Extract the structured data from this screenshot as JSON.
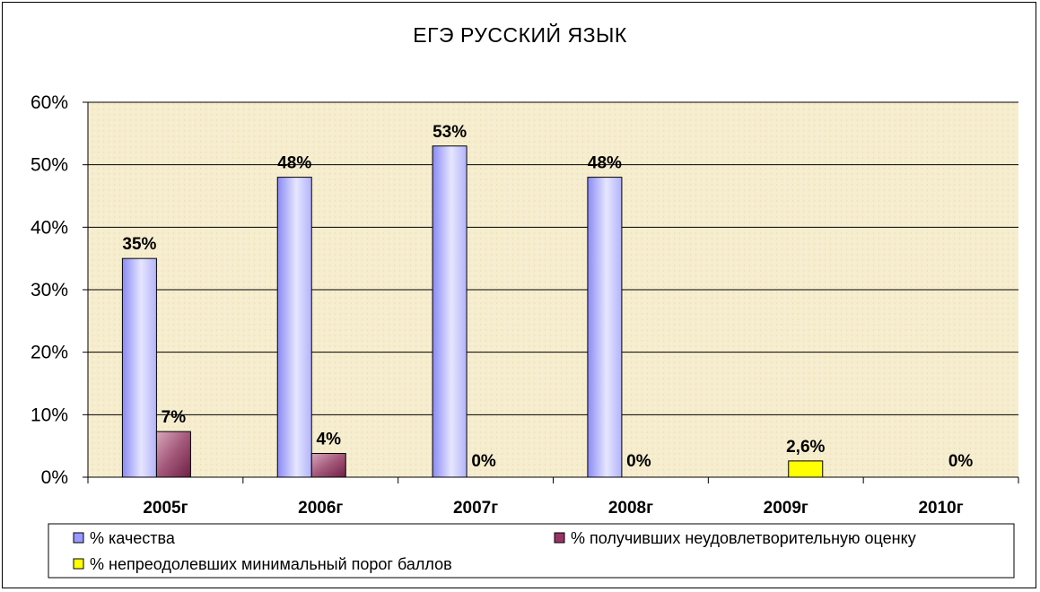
{
  "chart_data": {
    "type": "bar",
    "title": "ЕГЭ  РУССКИЙ ЯЗЫК",
    "categories": [
      "2005г",
      "2006г",
      "2007г",
      "2008г",
      "2009г",
      "2010г"
    ],
    "ylim": [
      0,
      60
    ],
    "yticks": [
      "0%",
      "10%",
      "20%",
      "30%",
      "40%",
      "50%",
      "60%"
    ],
    "grid": true,
    "legend_position": "bottom",
    "series": [
      {
        "name": "% качества",
        "color": "#9999ff",
        "values": [
          35,
          48,
          53,
          48,
          null,
          null
        ],
        "labels": [
          "35%",
          "48%",
          "53%",
          "48%",
          "",
          ""
        ]
      },
      {
        "name": "% получивших неудовлетворительную оценку",
        "color": "#993366",
        "values": [
          7.3,
          3.8,
          0,
          0,
          null,
          null
        ],
        "labels": [
          "7%",
          "4%",
          "0%",
          "0%",
          "",
          ""
        ]
      },
      {
        "name": "% непреодолевших минимальный порог баллов",
        "color": "#ffff00",
        "values": [
          null,
          null,
          null,
          null,
          2.6,
          0
        ],
        "labels": [
          "",
          "",
          "",
          "",
          "2,6%",
          "0%"
        ]
      }
    ]
  }
}
